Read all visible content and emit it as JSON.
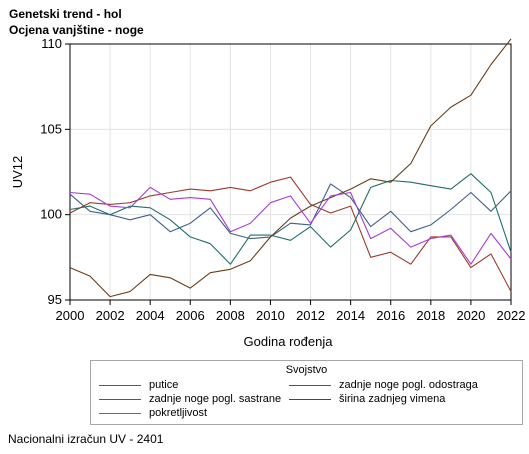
{
  "header": {
    "title": "Genetski trend - hol",
    "subtitle": "Ocjena vanjštine - noge"
  },
  "footer": {
    "note": "Nacionalni izračun UV - 2401"
  },
  "legend": {
    "title": "Svojstvo"
  },
  "chart_data": {
    "type": "line",
    "title": "Genetski trend - hol",
    "subtitle": "Ocjena vanjštine - noge",
    "xlabel": "Godina rođenja",
    "ylabel": "UV12",
    "xlim": [
      2000,
      2022
    ],
    "ylim": [
      95,
      110
    ],
    "x_ticks": [
      2000,
      2002,
      2004,
      2006,
      2008,
      2010,
      2012,
      2014,
      2016,
      2018,
      2020,
      2022
    ],
    "y_ticks": [
      95,
      100,
      105,
      110
    ],
    "grid": true,
    "legend_position": "bottom",
    "x": [
      2000,
      2001,
      2002,
      2003,
      2004,
      2005,
      2006,
      2007,
      2008,
      2009,
      2010,
      2011,
      2012,
      2013,
      2014,
      2015,
      2016,
      2017,
      2018,
      2019,
      2020,
      2021,
      2022
    ],
    "series": [
      {
        "name": "putice",
        "color": "#3f5f8c",
        "values": [
          101.2,
          100.2,
          100.0,
          99.7,
          100.0,
          99.0,
          99.5,
          100.4,
          98.9,
          98.6,
          98.7,
          99.5,
          99.4,
          101.8,
          101.0,
          99.3,
          100.2,
          99.0,
          99.4,
          100.3,
          101.3,
          100.2,
          101.4
        ]
      },
      {
        "name": "zadnje noge pogl. odostraga",
        "color": "#9c3a2a",
        "values": [
          100.1,
          100.7,
          100.6,
          100.7,
          101.1,
          101.3,
          101.5,
          101.4,
          101.6,
          101.4,
          101.9,
          102.2,
          100.6,
          100.1,
          100.5,
          97.5,
          97.8,
          97.1,
          98.7,
          98.7,
          96.9,
          97.7,
          95.5
        ]
      },
      {
        "name": "zadnje noge pogl. sastrane",
        "color": "#1f6f6a",
        "values": [
          100.3,
          100.5,
          100.0,
          100.5,
          100.4,
          99.7,
          98.7,
          98.3,
          97.1,
          98.8,
          98.8,
          98.5,
          99.3,
          98.1,
          99.1,
          101.6,
          102.0,
          101.9,
          101.7,
          101.5,
          102.4,
          101.3,
          97.8
        ]
      },
      {
        "name": "širina zadnjeg vimena",
        "color": "#6b3d17",
        "values": [
          96.9,
          96.4,
          95.2,
          95.5,
          96.5,
          96.3,
          95.7,
          96.6,
          96.8,
          97.3,
          98.7,
          99.8,
          100.5,
          101.0,
          101.5,
          102.1,
          101.9,
          103.0,
          105.2,
          106.3,
          107.0,
          108.8,
          110.3
        ]
      },
      {
        "name": "pokretljivost",
        "color": "#a53dd6",
        "values": [
          101.3,
          101.2,
          100.5,
          100.4,
          101.6,
          100.9,
          101.0,
          100.9,
          99.0,
          99.5,
          100.7,
          101.1,
          99.5,
          101.1,
          101.3,
          98.6,
          99.2,
          98.1,
          98.6,
          98.8,
          97.1,
          98.9,
          97.4
        ]
      }
    ]
  }
}
